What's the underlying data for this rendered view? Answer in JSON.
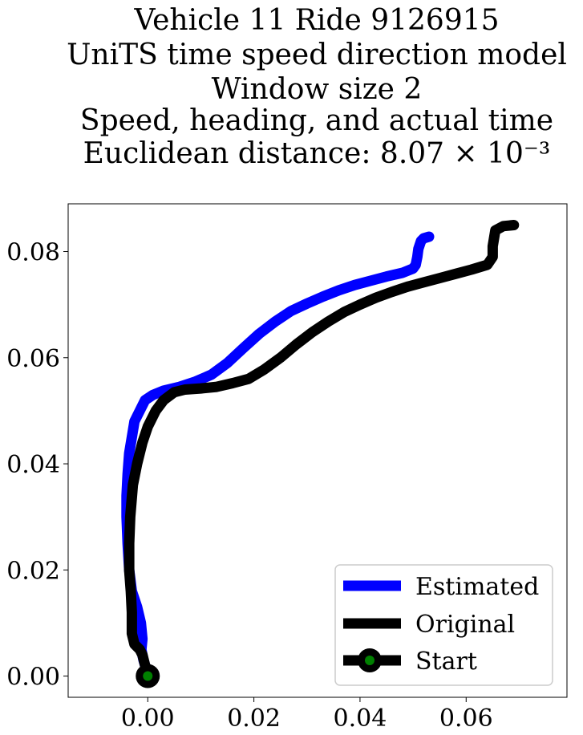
{
  "chart_data": {
    "type": "line",
    "title_lines": [
      "Vehicle 11 Ride 9126915",
      "UniTS time speed direction model",
      "Window size 2",
      "Speed, heading, and actual time",
      "Euclidean distance: 8.07 × 10⁻³"
    ],
    "xlabel": "",
    "ylabel": "",
    "xlim": [
      -0.015,
      0.079
    ],
    "ylim": [
      -0.004,
      0.089
    ],
    "xticks": [
      0.0,
      0.02,
      0.04,
      0.06
    ],
    "xtick_labels": [
      "0.00",
      "0.02",
      "0.04",
      "0.06"
    ],
    "yticks": [
      0.0,
      0.02,
      0.04,
      0.06,
      0.08
    ],
    "ytick_labels": [
      "0.00",
      "0.02",
      "0.04",
      "0.06",
      "0.08"
    ],
    "grid": false,
    "legend_position": "bottom-right",
    "series": [
      {
        "name": "Estimated",
        "color": "#0000ff",
        "x": [
          0.0,
          -0.0005,
          -0.0008,
          -0.001,
          -0.0012,
          -0.001,
          -0.0013,
          -0.002,
          -0.003,
          -0.0035,
          -0.0038,
          -0.004,
          -0.004,
          -0.0038,
          -0.0035,
          -0.003,
          -0.0025,
          -0.0015,
          -0.0005,
          0.001,
          0.003,
          0.006,
          0.009,
          0.012,
          0.015,
          0.018,
          0.021,
          0.024,
          0.027,
          0.03,
          0.033,
          0.036,
          0.039,
          0.042,
          0.045,
          0.048,
          0.05,
          0.0505,
          0.0508,
          0.051,
          0.0515,
          0.052,
          0.053
        ],
        "y": [
          0.0,
          0.002,
          0.003,
          0.004,
          0.005,
          0.007,
          0.01,
          0.013,
          0.016,
          0.02,
          0.025,
          0.03,
          0.034,
          0.038,
          0.042,
          0.045,
          0.048,
          0.05,
          0.052,
          0.053,
          0.0538,
          0.0545,
          0.0555,
          0.0568,
          0.059,
          0.0618,
          0.0645,
          0.0668,
          0.0688,
          0.0702,
          0.0715,
          0.0727,
          0.0737,
          0.0745,
          0.0753,
          0.076,
          0.0768,
          0.0775,
          0.079,
          0.0805,
          0.082,
          0.0825,
          0.0828
        ]
      },
      {
        "name": "Original",
        "color": "#000000",
        "x": [
          0.0,
          -0.0005,
          -0.001,
          -0.0015,
          -0.0025,
          -0.003,
          -0.003,
          -0.0032,
          -0.0035,
          -0.0035,
          -0.0033,
          -0.0028,
          -0.002,
          -0.001,
          0.0,
          0.0015,
          0.003,
          0.005,
          0.007,
          0.01,
          0.013,
          0.016,
          0.019,
          0.022,
          0.025,
          0.028,
          0.031,
          0.034,
          0.037,
          0.04,
          0.043,
          0.046,
          0.049,
          0.052,
          0.055,
          0.058,
          0.061,
          0.064,
          0.065,
          0.065,
          0.0655,
          0.067,
          0.069
        ],
        "y": [
          0.0,
          0.002,
          0.004,
          0.005,
          0.006,
          0.008,
          0.012,
          0.016,
          0.02,
          0.025,
          0.03,
          0.036,
          0.04,
          0.044,
          0.047,
          0.05,
          0.052,
          0.0535,
          0.054,
          0.0542,
          0.0545,
          0.0552,
          0.056,
          0.0578,
          0.06,
          0.0625,
          0.0648,
          0.0668,
          0.0686,
          0.07,
          0.0713,
          0.0724,
          0.0734,
          0.0742,
          0.075,
          0.0758,
          0.0766,
          0.0775,
          0.079,
          0.081,
          0.084,
          0.0848,
          0.085
        ]
      }
    ],
    "start_marker": {
      "name": "Start",
      "x": 0.0,
      "y": 0.0,
      "edge_color": "#000000",
      "face_color": "#008000"
    }
  }
}
